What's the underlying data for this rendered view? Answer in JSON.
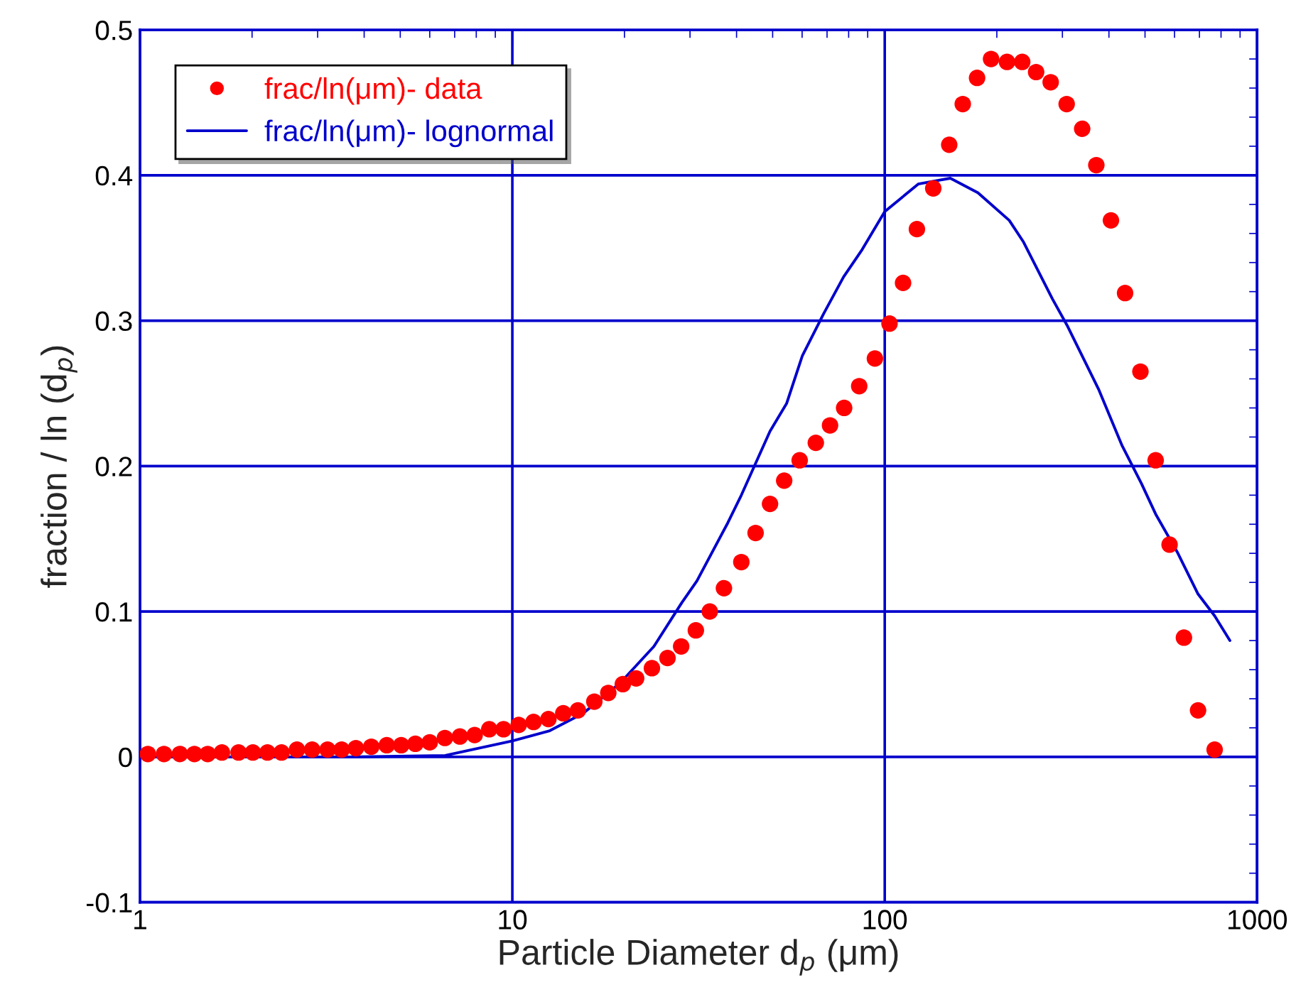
{
  "chart_data": {
    "type": "scatter",
    "xlabel": "Particle Diameter d$_{p}$ (μm)",
    "ylabel": "fraction / ln (d$_{p}$)",
    "log": "x",
    "xlim": [
      1,
      1000
    ],
    "xticks": [
      1,
      10,
      100,
      1000
    ],
    "ylim": [
      -0.1,
      0.5
    ],
    "yticks": [
      -0.1,
      0,
      0.1,
      0.2,
      0.3,
      0.4,
      0.5
    ],
    "grid": true,
    "legend": "top left",
    "series": [
      {
        "name": "frac/ln(μm)- data",
        "marker": "circle",
        "color": "#ff0000",
        "x": [
          1.05,
          1.16,
          1.28,
          1.4,
          1.52,
          1.66,
          1.84,
          2.01,
          2.2,
          2.4,
          2.64,
          2.9,
          3.19,
          3.48,
          3.8,
          4.18,
          4.6,
          5.03,
          5.49,
          6.0,
          6.59,
          7.23,
          7.92,
          8.67,
          9.47,
          10.4,
          11.4,
          12.5,
          13.7,
          15.0,
          16.6,
          18.1,
          19.8,
          21.5,
          23.7,
          26.1,
          28.4,
          31.1,
          33.9,
          37.0,
          41.2,
          45.0,
          49.2,
          53.7,
          59.1,
          65.3,
          71.3,
          77.8,
          85.4,
          94.1,
          103,
          112,
          122,
          135,
          149,
          162,
          177,
          193,
          213,
          234,
          255,
          279,
          308,
          339,
          370,
          405,
          442,
          486,
          534,
          582,
          636,
          694,
          769
        ],
        "values": [
          0.002,
          0.002,
          0.002,
          0.002,
          0.002,
          0.003,
          0.003,
          0.003,
          0.003,
          0.003,
          0.005,
          0.005,
          0.005,
          0.005,
          0.006,
          0.007,
          0.008,
          0.008,
          0.009,
          0.01,
          0.013,
          0.014,
          0.015,
          0.019,
          0.019,
          0.022,
          0.024,
          0.026,
          0.03,
          0.032,
          0.038,
          0.044,
          0.05,
          0.054,
          0.061,
          0.068,
          0.076,
          0.087,
          0.1,
          0.116,
          0.134,
          0.154,
          0.174,
          0.19,
          0.204,
          0.216,
          0.228,
          0.24,
          0.255,
          0.274,
          0.298,
          0.326,
          0.363,
          0.391,
          0.421,
          0.449,
          0.467,
          0.48,
          0.478,
          0.478,
          0.471,
          0.464,
          0.449,
          0.432,
          0.407,
          0.369,
          0.319,
          0.265,
          0.204,
          0.146,
          0.082,
          0.032,
          0.005
        ]
      },
      {
        "name": "frac/ln(μm)- lognormal",
        "type": "line",
        "line_style": "solid",
        "color": "#0000cc",
        "x": [
          1.05,
          3.8,
          6.6,
          10.0,
          12.6,
          15.5,
          19.5,
          24.0,
          28.5,
          31.3,
          37.9,
          41.2,
          49.2,
          54.5,
          60.1,
          68.6,
          77.5,
          87.0,
          100,
          123,
          150,
          178,
          216,
          236,
          282,
          310,
          375,
          434,
          489,
          534,
          610,
          694,
          769,
          845
        ],
        "values": [
          0.0,
          0.0,
          0.001,
          0.011,
          0.018,
          0.03,
          0.051,
          0.076,
          0.106,
          0.121,
          0.161,
          0.18,
          0.224,
          0.243,
          0.276,
          0.305,
          0.33,
          0.349,
          0.375,
          0.394,
          0.398,
          0.388,
          0.369,
          0.354,
          0.315,
          0.296,
          0.253,
          0.214,
          0.188,
          0.167,
          0.141,
          0.112,
          0.097,
          0.08
        ]
      }
    ]
  }
}
